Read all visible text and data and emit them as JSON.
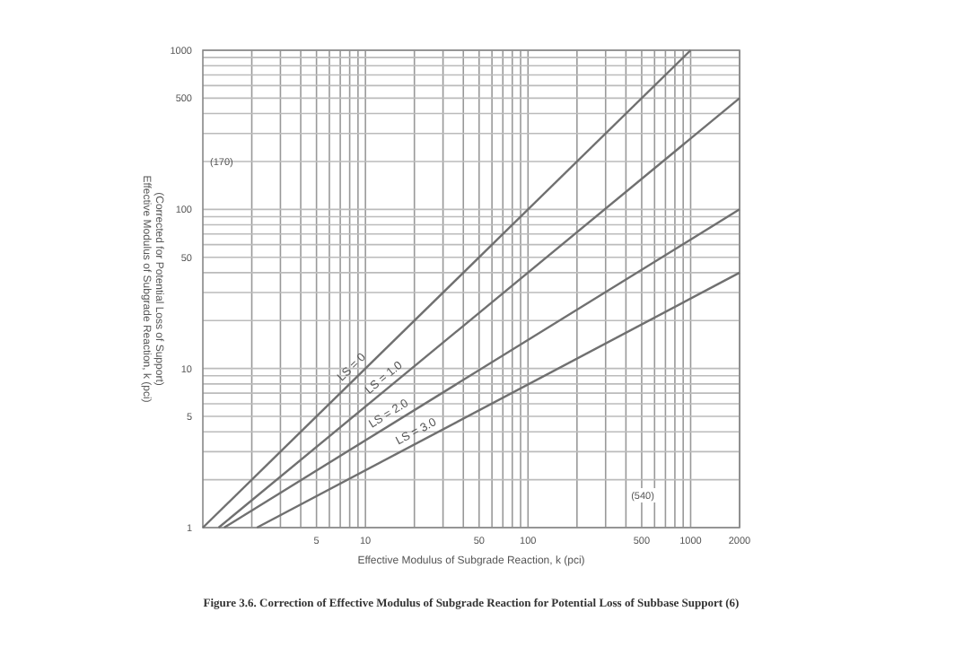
{
  "chart_data": {
    "type": "line",
    "title": "Figure 3.6.   Correction of Effective Modulus of Subgrade Reaction for Potential Loss of Subbase Support (6)",
    "xlabel": "Effective Modulus of Subgrade Reaction, k (pci)",
    "ylabel": "Effective Modulus of Subgrade Reaction, k (pci)\n(Corrected for Potential Loss of Support)",
    "log": "xy",
    "grid": true,
    "marker": "none",
    "line_style": "solid",
    "xlim": [
      1,
      2000
    ],
    "ylim": [
      1,
      1000
    ],
    "xticks": [
      {
        "value": 2,
        "label": null
      },
      {
        "value": 3,
        "label": null
      },
      {
        "value": 4,
        "label": null
      },
      5,
      {
        "value": 6,
        "label": null
      },
      {
        "value": 7,
        "label": null
      },
      {
        "value": 8,
        "label": null
      },
      {
        "value": 9,
        "label": null
      },
      10,
      {
        "value": 20,
        "label": null
      },
      {
        "value": 30,
        "label": null
      },
      {
        "value": 40,
        "label": null
      },
      50,
      {
        "value": 60,
        "label": null
      },
      {
        "value": 70,
        "label": null
      },
      {
        "value": 80,
        "label": null
      },
      {
        "value": 90,
        "label": null
      },
      100,
      {
        "value": 200,
        "label": null
      },
      {
        "value": 300,
        "label": null
      },
      {
        "value": 400,
        "label": null
      },
      500,
      {
        "value": 600,
        "label": null
      },
      {
        "value": 700,
        "label": null
      },
      {
        "value": 800,
        "label": null
      },
      {
        "value": 900,
        "label": null
      },
      1000,
      2000
    ],
    "yticks": [
      1,
      {
        "value": 2,
        "label": null
      },
      {
        "value": 3,
        "label": null
      },
      {
        "value": 4,
        "label": null
      },
      5,
      {
        "value": 6,
        "label": null
      },
      {
        "value": 7,
        "label": null
      },
      {
        "value": 8,
        "label": null
      },
      {
        "value": 9,
        "label": null
      },
      10,
      {
        "value": 20,
        "label": null
      },
      {
        "value": 30,
        "label": null
      },
      {
        "value": 40,
        "label": null
      },
      50,
      {
        "value": 60,
        "label": null
      },
      {
        "value": 70,
        "label": null
      },
      {
        "value": 80,
        "label": null
      },
      {
        "value": 90,
        "label": null
      },
      100,
      {
        "value": 200,
        "label": null
      },
      {
        "value": 300,
        "label": null
      },
      {
        "value": 400,
        "label": null
      },
      500,
      {
        "value": 600,
        "label": null
      },
      {
        "value": 700,
        "label": null
      },
      {
        "value": 800,
        "label": null
      },
      {
        "value": 900,
        "label": null
      },
      1000
    ],
    "series": [
      {
        "name": "LS = 0",
        "color": "#707070",
        "x": [
          1,
          1000
        ],
        "values": [
          1,
          1000
        ]
      },
      {
        "name": "LS = 1.0",
        "color": "#707070",
        "x": [
          1.25,
          2000
        ],
        "values": [
          1,
          500
        ]
      },
      {
        "name": "LS = 2.0",
        "color": "#707070",
        "x": [
          1.35,
          2000
        ],
        "values": [
          1,
          100
        ]
      },
      {
        "name": "LS = 3.0",
        "color": "#707070",
        "x": [
          2.15,
          2000
        ],
        "values": [
          1,
          40
        ]
      }
    ],
    "annotations": [
      "(170)",
      "(540)"
    ]
  }
}
